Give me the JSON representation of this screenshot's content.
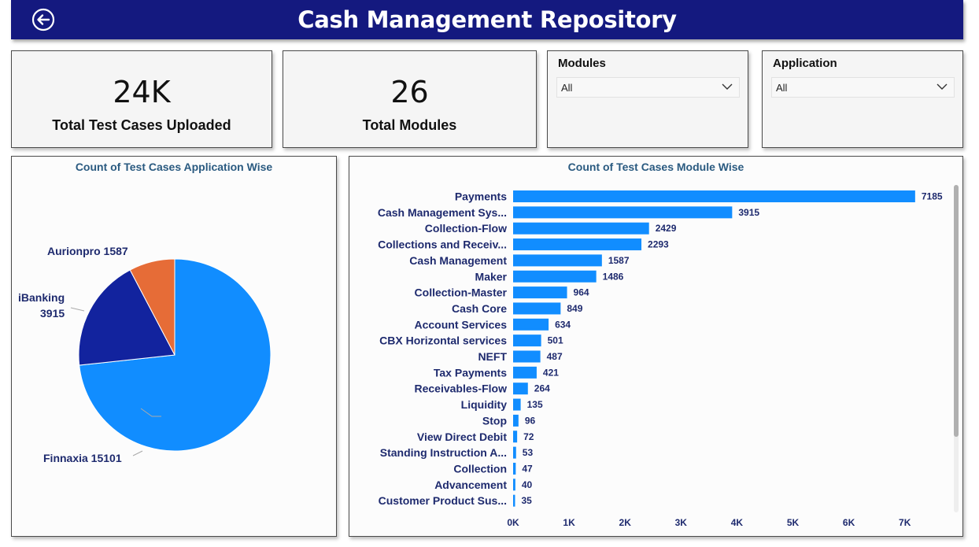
{
  "header": {
    "title": "Cash Management Repository"
  },
  "kpis": {
    "total_test_cases": {
      "value": "24K",
      "label": "Total Test Cases Uploaded"
    },
    "total_modules": {
      "value": "26",
      "label": "Total Modules"
    }
  },
  "slicers": {
    "modules": {
      "title": "Modules",
      "value": "All"
    },
    "application": {
      "title": "Application",
      "value": "All"
    }
  },
  "colors": {
    "header_bg": "#14197f",
    "accent_blue": "#118dff",
    "dark_blue": "#12239e",
    "orange": "#e66c37",
    "label_navy": "#1e2a6e",
    "title_blue": "#2a5a80"
  },
  "pie_chart": {
    "title": "Count of Test Cases Application Wise",
    "labels": {
      "aurionpro": "Aurionpro 1587",
      "ibanking_name": "iBanking",
      "ibanking_value": "3915",
      "finnaxia": "Finnaxia 15101"
    }
  },
  "bar_chart": {
    "title": "Count of Test Cases Module Wise"
  },
  "chart_data": [
    {
      "type": "pie",
      "title": "Count of Test Cases Application Wise",
      "categories": [
        "Finnaxia",
        "iBanking",
        "Aurionpro"
      ],
      "values": [
        15101,
        3915,
        1587
      ],
      "colors": [
        "#118dff",
        "#12239e",
        "#e66c37"
      ]
    },
    {
      "type": "bar",
      "orientation": "horizontal",
      "title": "Count of Test Cases Module Wise",
      "categories": [
        "Payments",
        "Cash Management Sys...",
        "Collection-Flow",
        "Collections and Receiv...",
        "Cash Management",
        "Maker",
        "Collection-Master",
        "Cash Core",
        "Account Services",
        "CBX Horizontal services",
        "NEFT",
        "Tax Payments",
        "Receivables-Flow",
        "Liquidity",
        "Stop",
        "View Direct Debit",
        "Standing Instruction A...",
        "Collection",
        "Advancement",
        "Customer Product Sus..."
      ],
      "values": [
        7185,
        3915,
        2429,
        2293,
        1587,
        1486,
        964,
        849,
        634,
        501,
        487,
        421,
        264,
        135,
        96,
        72,
        53,
        47,
        40,
        35
      ],
      "xticks": [
        "0K",
        "1K",
        "2K",
        "3K",
        "4K",
        "5K",
        "6K",
        "7K"
      ],
      "xlim": [
        0,
        7600
      ],
      "color": "#118dff"
    }
  ]
}
